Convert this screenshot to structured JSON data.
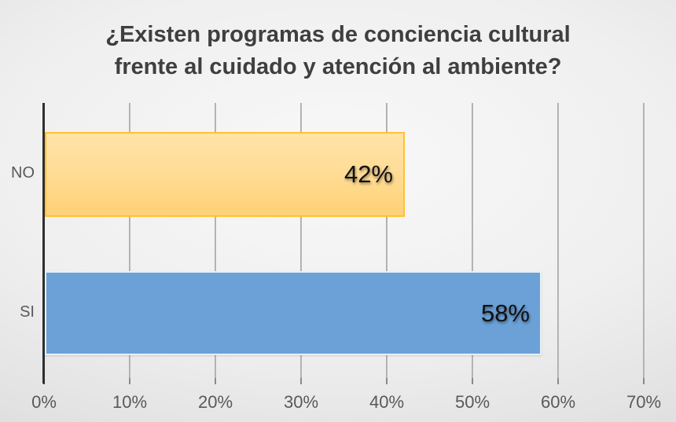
{
  "chart_data": {
    "type": "bar",
    "orientation": "horizontal",
    "title": "¿Existen programas de conciencia cultural frente al cuidado y atención al ambiente?",
    "title_lines": [
      "¿Existen programas de conciencia cultural",
      "frente al cuidado y atención al ambiente?"
    ],
    "categories": [
      "NO",
      "SI"
    ],
    "values": [
      42,
      58
    ],
    "data_labels": [
      "42%",
      "58%"
    ],
    "series": [
      {
        "name": "NO",
        "value": 42,
        "label": "42%",
        "fill_top": "#ffe3a6",
        "fill_bottom": "#ffd175",
        "border": "#ffc233"
      },
      {
        "name": "SI",
        "value": 58,
        "label": "58%",
        "fill": "#6ba1d7",
        "border": "#f5f9fd"
      }
    ],
    "xlabel": "",
    "ylabel": "",
    "xlim": [
      0,
      70
    ],
    "x_ticks": [
      "0%",
      "10%",
      "20%",
      "30%",
      "40%",
      "50%",
      "60%",
      "70%"
    ],
    "grid": true,
    "legend": false,
    "colors": {
      "gridline": "#ababab",
      "axis_line": "#2e2e2e",
      "title_text": "#3f3f3f",
      "tick_text": "#595959",
      "data_label_text": "#111111",
      "background_center": "#f8f8f8",
      "background_edge": "#c7c8c8"
    }
  }
}
